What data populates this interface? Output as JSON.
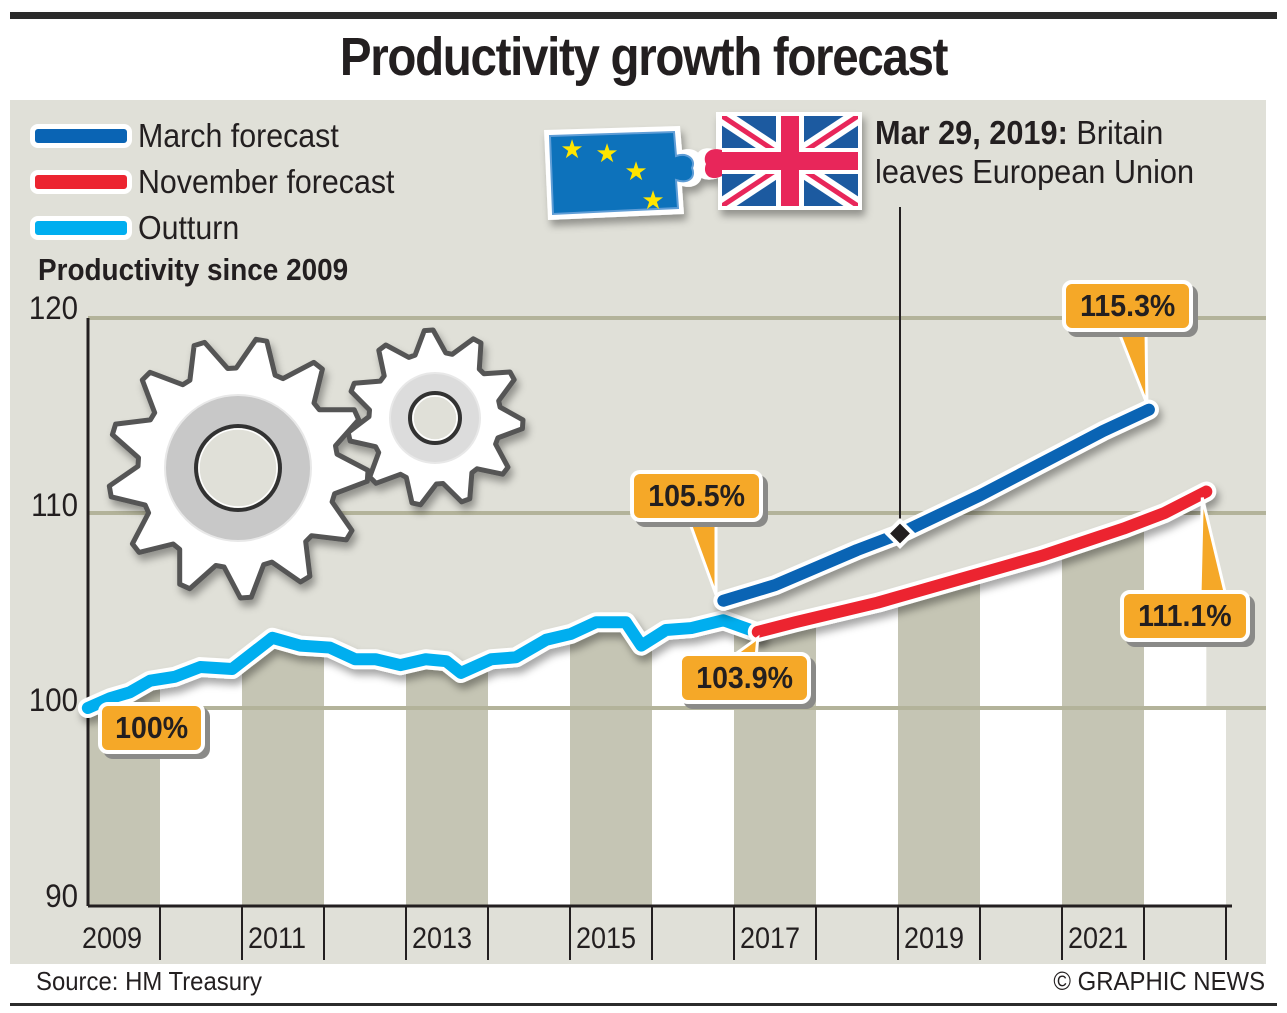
{
  "header": {
    "title": "Productivity growth forecast"
  },
  "legend": [
    {
      "label": "March forecast",
      "color": "#0a64b4"
    },
    {
      "label": "November forecast",
      "color": "#ec2430"
    },
    {
      "label": "Outturn",
      "color": "#00aeef"
    }
  ],
  "annotation": {
    "date": "Mar 29, 2019:",
    "line1_rest": " Britain",
    "line2": "leaves European Union",
    "icon": "eu-uk-puzzle-icon"
  },
  "callouts": {
    "start": "100%",
    "march_start": "105.5%",
    "outturn_end": "103.9%",
    "march_end": "115.3%",
    "november_end": "111.1%"
  },
  "footer": {
    "source": "Source: HM Treasury",
    "credit": "© GRAPHIC NEWS"
  },
  "colors": {
    "callout": "#f5a828",
    "panel": "#e0e0d8",
    "band": "#c5c5b4",
    "grid": "#b3b39a"
  },
  "chart_data": {
    "type": "line",
    "title": "Productivity growth forecast",
    "subtitle": "Productivity since 2009",
    "xlabel": "",
    "ylabel": "Productivity since 2009",
    "ylim": [
      90,
      120
    ],
    "xlim": [
      2009,
      2023
    ],
    "yticks": [
      "90",
      "100",
      "110",
      "120"
    ],
    "xticks": [
      "2009",
      "2011",
      "2013",
      "2015",
      "2017",
      "2019",
      "2021"
    ],
    "grid": true,
    "legend_position": "top-left",
    "series": [
      {
        "name": "Outturn",
        "x": [
          2009.12,
          2009.39,
          2009.63,
          2009.88,
          2010.18,
          2010.49,
          2010.88,
          2011.37,
          2011.71,
          2012.07,
          2012.38,
          2012.63,
          2012.93,
          2013.24,
          2013.49,
          2013.67,
          2014.04,
          2014.34,
          2014.71,
          2015.01,
          2015.32,
          2015.68,
          2015.87,
          2016.17,
          2016.48,
          2016.87,
          2017.27
        ],
        "values": [
          100.0,
          100.5,
          100.8,
          101.4,
          101.6,
          102.1,
          102.0,
          103.6,
          103.2,
          103.1,
          102.5,
          102.5,
          102.2,
          102.5,
          102.4,
          101.8,
          102.5,
          102.6,
          103.5,
          103.8,
          104.4,
          104.4,
          103.2,
          104.0,
          104.1,
          104.5,
          103.9
        ]
      },
      {
        "name": "March forecast",
        "x": [
          2016.87,
          2017.5,
          2018.0,
          2018.5,
          2019.0,
          2019.5,
          2020.0,
          2020.5,
          2021.0,
          2021.5,
          2022.06
        ],
        "values": [
          105.5,
          106.3,
          107.2,
          108.1,
          108.9,
          109.9,
          110.9,
          112.0,
          113.1,
          114.2,
          115.3
        ]
      },
      {
        "name": "November forecast",
        "x": [
          2017.29,
          2017.75,
          2018.25,
          2018.75,
          2019.25,
          2019.75,
          2020.25,
          2020.75,
          2021.25,
          2021.75,
          2022.25,
          2022.76
        ],
        "values": [
          103.9,
          104.4,
          104.9,
          105.4,
          106.0,
          106.6,
          107.2,
          107.8,
          108.5,
          109.2,
          110.0,
          111.1
        ]
      }
    ],
    "annotations": [
      {
        "text": "Mar 29, 2019: Britain leaves European Union",
        "x": 2019.24
      },
      {
        "text": "100%",
        "series": "Outturn",
        "x": 2009.12
      },
      {
        "text": "105.5%",
        "series": "March forecast",
        "x": 2016.87
      },
      {
        "text": "103.9%",
        "series": "Outturn",
        "x": 2017.27
      },
      {
        "text": "115.3%",
        "series": "March forecast",
        "x": 2022.06
      },
      {
        "text": "111.1%",
        "series": "November forecast",
        "x": 2022.76
      }
    ]
  }
}
